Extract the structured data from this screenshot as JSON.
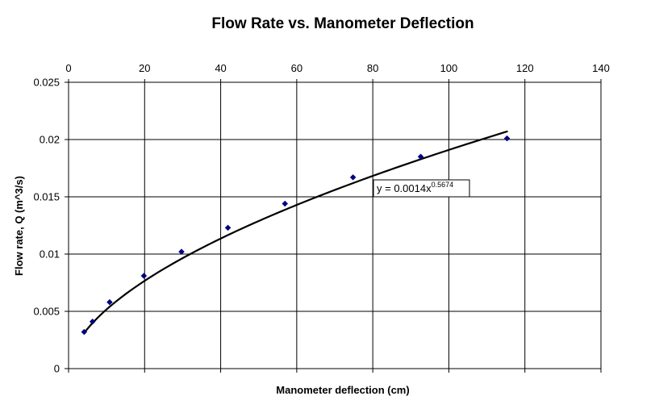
{
  "chart_data": {
    "type": "scatter",
    "title": "Flow Rate vs. Manometer Deflection",
    "xlabel": "Manometer deflection (cm)",
    "ylabel": "Flow rate, Q (m^3/s)",
    "xlim": [
      0,
      140
    ],
    "ylim": [
      0,
      0.025
    ],
    "x_ticks": [
      0,
      20,
      40,
      60,
      80,
      100,
      120,
      140
    ],
    "y_ticks": [
      0,
      0.005,
      0.01,
      0.015,
      0.02,
      0.025
    ],
    "x_tick_labels": [
      "0",
      "20",
      "40",
      "60",
      "80",
      "100",
      "120",
      "140"
    ],
    "y_tick_labels": [
      "0",
      "0.005",
      "0.01",
      "0.015",
      "0.02",
      "0.025"
    ],
    "x_axis_position": "top",
    "grid": true,
    "series": [
      {
        "values": [
          {
            "x": 4.1,
            "y": 0.0032
          },
          {
            "x": 6.3,
            "y": 0.0041
          },
          {
            "x": 10.8,
            "y": 0.0058
          },
          {
            "x": 19.8,
            "y": 0.0081
          },
          {
            "x": 29.7,
            "y": 0.0102
          },
          {
            "x": 41.9,
            "y": 0.0123
          },
          {
            "x": 56.9,
            "y": 0.0144
          },
          {
            "x": 74.8,
            "y": 0.0167
          },
          {
            "x": 92.6,
            "y": 0.0185
          },
          {
            "x": 115.3,
            "y": 0.0201
          }
        ],
        "color": "#000080",
        "marker": "diamond"
      }
    ],
    "trendline": {
      "type": "power",
      "coefficient": 0.0014,
      "exponent": 0.5674,
      "x_range": [
        4,
        115.5
      ],
      "label_base": "y = 0.0014x",
      "label_exponent": "0.5674",
      "color": "#000000"
    }
  }
}
